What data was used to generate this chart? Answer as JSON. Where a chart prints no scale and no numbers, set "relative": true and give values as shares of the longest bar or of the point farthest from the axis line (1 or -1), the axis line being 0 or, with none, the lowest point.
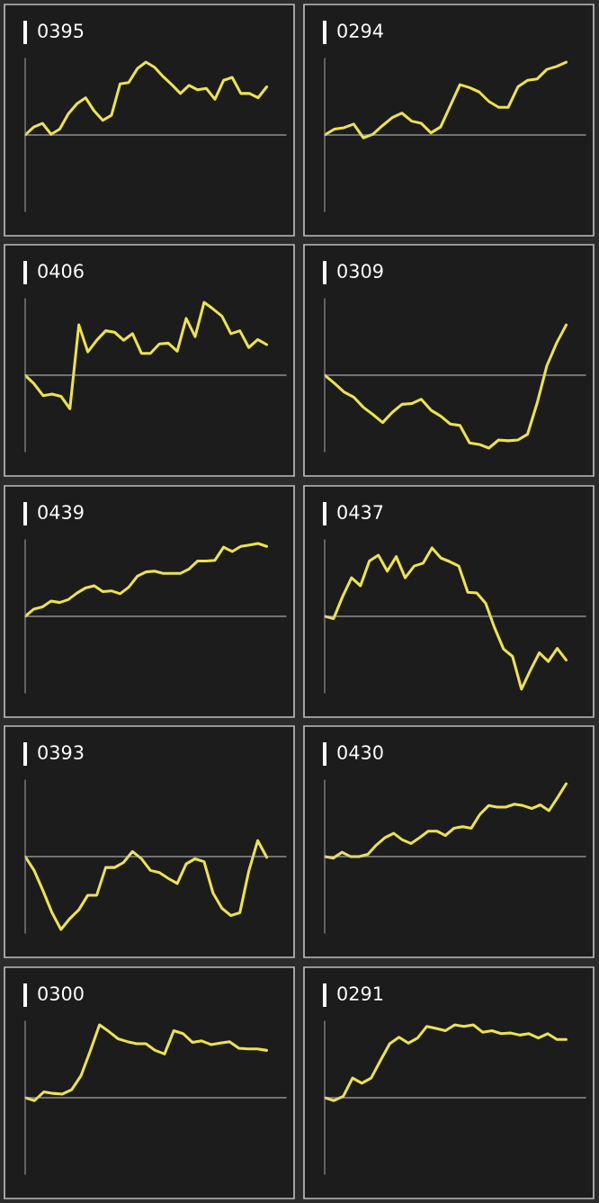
{
  "chart_data": [
    {
      "type": "line",
      "title": "0395",
      "relative": true,
      "categories": [
        null,
        null,
        null,
        null,
        null,
        null,
        null,
        null,
        null,
        null,
        null,
        null,
        null,
        null,
        null,
        null,
        null,
        null,
        null,
        null,
        null,
        null,
        null,
        null,
        null,
        null,
        null,
        null,
        null
      ],
      "series": [
        {
          "color": "#ede24f",
          "values": [
            0,
            0.11,
            0.16,
            0.01,
            0.08,
            0.29,
            0.43,
            0.51,
            0.33,
            0.2,
            0.27,
            0.7,
            0.72,
            0.91,
            1,
            0.93,
            0.8,
            0.69,
            0.57,
            0.68,
            0.62,
            0.64,
            0.49,
            0.75,
            0.79,
            0.57,
            0.57,
            0.51,
            0.66
          ]
        }
      ]
    },
    {
      "type": "line",
      "title": "0294",
      "relative": true,
      "categories": [
        null,
        null,
        null,
        null,
        null,
        null,
        null,
        null,
        null,
        null,
        null,
        null,
        null,
        null,
        null,
        null,
        null,
        null,
        null,
        null,
        null,
        null,
        null,
        null,
        null,
        null
      ],
      "series": [
        {
          "color": "#ede24f",
          "values": [
            0,
            0.08,
            0.1,
            0.15,
            -0.04,
            0.01,
            0.13,
            0.24,
            0.3,
            0.19,
            0.16,
            0.03,
            0.11,
            0.4,
            0.69,
            0.65,
            0.59,
            0.46,
            0.38,
            0.38,
            0.66,
            0.75,
            0.77,
            0.9,
            0.94,
            1
          ]
        }
      ]
    },
    {
      "type": "line",
      "title": "0406",
      "relative": true,
      "categories": [
        null,
        null,
        null,
        null,
        null,
        null,
        null,
        null,
        null,
        null,
        null,
        null,
        null,
        null,
        null,
        null,
        null,
        null,
        null,
        null,
        null,
        null,
        null,
        null,
        null,
        null,
        null,
        null
      ],
      "series": [
        {
          "color": "#ede24f",
          "values": [
            0,
            -0.12,
            -0.28,
            -0.26,
            -0.29,
            -0.46,
            0.69,
            0.32,
            0.48,
            0.61,
            0.59,
            0.48,
            0.57,
            0.3,
            0.3,
            0.43,
            0.44,
            0.33,
            0.78,
            0.53,
            1,
            0.91,
            0.81,
            0.57,
            0.61,
            0.38,
            0.49,
            0.42
          ]
        }
      ]
    },
    {
      "type": "line",
      "title": "0309",
      "relative": true,
      "categories": [
        null,
        null,
        null,
        null,
        null,
        null,
        null,
        null,
        null,
        null,
        null,
        null,
        null,
        null,
        null,
        null,
        null,
        null,
        null,
        null,
        null,
        null,
        null,
        null,
        null,
        null
      ],
      "series": [
        {
          "color": "#ede24f",
          "values": [
            0,
            -0.11,
            -0.23,
            -0.3,
            -0.44,
            -0.54,
            -0.65,
            -0.51,
            -0.4,
            -0.39,
            -0.33,
            -0.48,
            -0.56,
            -0.67,
            -0.69,
            -0.93,
            -0.95,
            -1,
            -0.89,
            -0.9,
            -0.89,
            -0.81,
            -0.38,
            0.13,
            0.44,
            0.69
          ]
        }
      ]
    },
    {
      "type": "line",
      "title": "0439",
      "relative": true,
      "categories": [
        null,
        null,
        null,
        null,
        null,
        null,
        null,
        null,
        null,
        null,
        null,
        null,
        null,
        null,
        null,
        null,
        null,
        null,
        null,
        null,
        null,
        null,
        null,
        null,
        null,
        null,
        null,
        null,
        null
      ],
      "series": [
        {
          "color": "#ede24f",
          "values": [
            0,
            0.1,
            0.13,
            0.21,
            0.19,
            0.23,
            0.32,
            0.39,
            0.42,
            0.34,
            0.35,
            0.31,
            0.4,
            0.55,
            0.61,
            0.62,
            0.59,
            0.59,
            0.59,
            0.65,
            0.76,
            0.76,
            0.77,
            0.95,
            0.89,
            0.96,
            0.98,
            1,
            0.96
          ]
        }
      ]
    },
    {
      "type": "line",
      "title": "0437",
      "relative": true,
      "categories": [
        null,
        null,
        null,
        null,
        null,
        null,
        null,
        null,
        null,
        null,
        null,
        null,
        null,
        null,
        null,
        null,
        null,
        null,
        null,
        null,
        null,
        null,
        null,
        null,
        null,
        null,
        null,
        null
      ],
      "series": [
        {
          "color": "#ede24f",
          "values": [
            0,
            -0.03,
            0.27,
            0.53,
            0.42,
            0.76,
            0.84,
            0.62,
            0.82,
            0.53,
            0.69,
            0.73,
            0.94,
            0.8,
            0.75,
            0.69,
            0.33,
            0.32,
            0.18,
            -0.16,
            -0.45,
            -0.55,
            -1,
            -0.74,
            -0.5,
            -0.62,
            -0.44,
            -0.6
          ]
        }
      ]
    },
    {
      "type": "line",
      "title": "0393",
      "relative": true,
      "categories": [
        null,
        null,
        null,
        null,
        null,
        null,
        null,
        null,
        null,
        null,
        null,
        null,
        null,
        null,
        null,
        null,
        null,
        null,
        null,
        null,
        null,
        null,
        null,
        null,
        null,
        null,
        null,
        null
      ],
      "series": [
        {
          "color": "#ede24f",
          "values": [
            0,
            -0.19,
            -0.47,
            -0.77,
            -1,
            -0.85,
            -0.73,
            -0.53,
            -0.53,
            -0.15,
            -0.15,
            -0.08,
            0.07,
            -0.03,
            -0.19,
            -0.22,
            -0.3,
            -0.37,
            -0.1,
            -0.03,
            -0.07,
            -0.5,
            -0.71,
            -0.81,
            -0.77,
            -0.2,
            0.22,
            -0.01
          ]
        }
      ]
    },
    {
      "type": "line",
      "title": "0430",
      "relative": true,
      "categories": [
        null,
        null,
        null,
        null,
        null,
        null,
        null,
        null,
        null,
        null,
        null,
        null,
        null,
        null,
        null,
        null,
        null,
        null,
        null,
        null,
        null,
        null,
        null,
        null,
        null,
        null,
        null,
        null,
        null
      ],
      "series": [
        {
          "color": "#ede24f",
          "values": [
            0,
            -0.02,
            0.06,
            0,
            0,
            0.03,
            0.16,
            0.26,
            0.32,
            0.23,
            0.18,
            0.26,
            0.35,
            0.35,
            0.29,
            0.39,
            0.41,
            0.39,
            0.58,
            0.7,
            0.68,
            0.68,
            0.72,
            0.7,
            0.66,
            0.71,
            0.63,
            0.81,
            1
          ]
        }
      ]
    },
    {
      "type": "line",
      "title": "0300",
      "relative": true,
      "categories": [
        null,
        null,
        null,
        null,
        null,
        null,
        null,
        null,
        null,
        null,
        null,
        null,
        null,
        null,
        null,
        null,
        null,
        null,
        null,
        null,
        null,
        null,
        null,
        null,
        null,
        null,
        null
      ],
      "series": [
        {
          "color": "#ede24f",
          "values": [
            0,
            -0.04,
            0.08,
            0.06,
            0.05,
            0.11,
            0.3,
            0.64,
            1,
            0.91,
            0.81,
            0.77,
            0.74,
            0.74,
            0.65,
            0.6,
            0.92,
            0.88,
            0.76,
            0.78,
            0.73,
            0.75,
            0.77,
            0.68,
            0.67,
            0.67,
            0.65
          ]
        }
      ]
    },
    {
      "type": "line",
      "title": "0291",
      "relative": true,
      "categories": [
        null,
        null,
        null,
        null,
        null,
        null,
        null,
        null,
        null,
        null,
        null,
        null,
        null,
        null,
        null,
        null,
        null,
        null,
        null,
        null,
        null,
        null,
        null,
        null,
        null,
        null,
        null
      ],
      "series": [
        {
          "color": "#ede24f",
          "values": [
            0,
            -0.04,
            0.02,
            0.27,
            0.2,
            0.27,
            0.51,
            0.74,
            0.83,
            0.75,
            0.82,
            0.98,
            0.95,
            0.92,
            1,
            0.98,
            1,
            0.9,
            0.92,
            0.88,
            0.89,
            0.86,
            0.88,
            0.82,
            0.88,
            0.8,
            0.8
          ]
        }
      ]
    }
  ]
}
